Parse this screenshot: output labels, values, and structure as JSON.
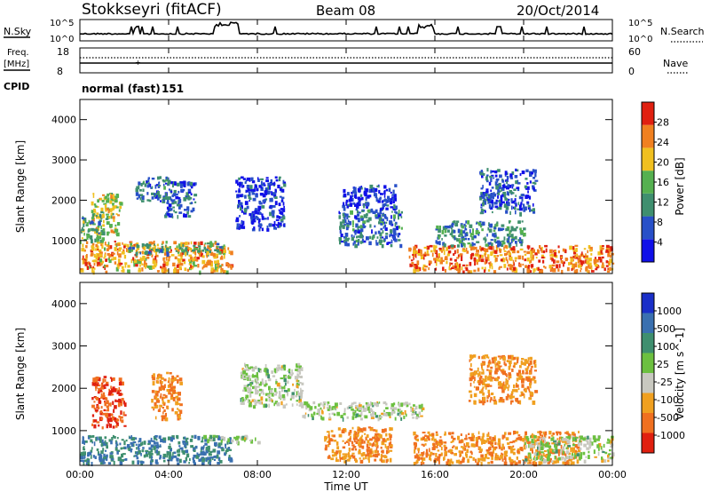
{
  "header": {
    "station": "Stokkseyri (fitACF)",
    "beam": "Beam 08",
    "date": "20/Oct/2014"
  },
  "noise_panel": {
    "left_label": "N.Sky",
    "right_label": "N.Search",
    "y_ticks_left": [
      "10^5",
      "10^0"
    ],
    "y_ticks_right": [
      "10^5",
      "10^0"
    ]
  },
  "freq_panel": {
    "left_label_line1": "Freq.",
    "left_label_line2": "[MHz]",
    "right_label": "Nave",
    "y_ticks_left": [
      "18",
      "8"
    ],
    "y_ticks_right": [
      "60",
      "0"
    ]
  },
  "cpid": {
    "label": "CPID",
    "text": "normal (fast)",
    "number": "151"
  },
  "x_axis": {
    "title": "Time UT",
    "ticks": [
      "00:00",
      "04:00",
      "08:00",
      "12:00",
      "16:00",
      "20:00",
      "00:00"
    ]
  },
  "range_axis": {
    "title": "Slant Range [km]",
    "ticks": [
      "1000",
      "2000",
      "3000",
      "4000"
    ]
  },
  "power_colorbar": {
    "title": "Power [dB]",
    "ticks": [
      "4",
      "8",
      "12",
      "16",
      "20",
      "24",
      "28"
    ],
    "colors": [
      "#1010e8",
      "#2850c8",
      "#3f8f6f",
      "#55b050",
      "#f0c020",
      "#f08020",
      "#e02010"
    ]
  },
  "velocity_colorbar": {
    "title": "Velocity [m s^-1]",
    "ticks": [
      "1000",
      "500",
      "100",
      "25",
      "-25",
      "-100",
      "-500",
      "-1000"
    ],
    "colors": [
      "#1a2fc8",
      "#3a70b0",
      "#3f8f6f",
      "#6cc040",
      "#c8c8c0",
      "#f0a020",
      "#f07020",
      "#e02010"
    ]
  },
  "chart_data": {
    "type": "heatmap",
    "x_range_hours": [
      0,
      24
    ],
    "y_range_km": [
      180,
      4500
    ],
    "power_regions": [
      {
        "t0": 0.0,
        "t1": 6.8,
        "r0": 250,
        "r1": 1000,
        "db": 22
      },
      {
        "t0": 0.5,
        "t1": 1.8,
        "r0": 1200,
        "r1": 2200,
        "db": 18
      },
      {
        "t0": 0.0,
        "t1": 1.0,
        "r0": 1000,
        "r1": 1700,
        "db": 14
      },
      {
        "t0": 2.0,
        "t1": 6.5,
        "r0": 700,
        "r1": 950,
        "db": 14
      },
      {
        "t0": 2.5,
        "t1": 4.0,
        "r0": 2000,
        "r1": 2600,
        "db": 10
      },
      {
        "t0": 3.8,
        "t1": 5.2,
        "r0": 1600,
        "r1": 2500,
        "db": 8
      },
      {
        "t0": 7.0,
        "t1": 9.2,
        "r0": 1300,
        "r1": 2600,
        "db": 6
      },
      {
        "t0": 11.6,
        "t1": 14.5,
        "r0": 900,
        "r1": 1800,
        "db": 10
      },
      {
        "t0": 11.8,
        "t1": 14.2,
        "r0": 1800,
        "r1": 2400,
        "db": 6
      },
      {
        "t0": 14.8,
        "t1": 24.0,
        "r0": 250,
        "r1": 900,
        "db": 24
      },
      {
        "t0": 16.0,
        "t1": 20.0,
        "r0": 900,
        "r1": 1500,
        "db": 12
      },
      {
        "t0": 18.0,
        "t1": 20.5,
        "r0": 1700,
        "r1": 2800,
        "db": 8
      }
    ],
    "velocity_regions": [
      {
        "t0": 0.0,
        "t1": 6.8,
        "r0": 250,
        "r1": 900,
        "v": 100
      },
      {
        "t0": 0.5,
        "t1": 2.0,
        "r0": 1100,
        "r1": 2300,
        "v": -500
      },
      {
        "t0": 3.2,
        "t1": 4.5,
        "r0": 1300,
        "r1": 2400,
        "v": -100
      },
      {
        "t0": 5.5,
        "t1": 8.0,
        "r0": 750,
        "r1": 900,
        "v": 0
      },
      {
        "t0": 7.2,
        "t1": 10.0,
        "r0": 1600,
        "r1": 2600,
        "v": 0
      },
      {
        "t0": 10.0,
        "t1": 15.5,
        "r0": 1300,
        "r1": 1700,
        "v": 0
      },
      {
        "t0": 11.0,
        "t1": 14.0,
        "r0": 300,
        "r1": 1100,
        "v": -100
      },
      {
        "t0": 15.0,
        "t1": 22.5,
        "r0": 250,
        "r1": 1000,
        "v": -100
      },
      {
        "t0": 20.0,
        "t1": 24.0,
        "r0": 300,
        "r1": 900,
        "v": 0
      },
      {
        "t0": 17.5,
        "t1": 20.5,
        "r0": 1700,
        "r1": 2800,
        "v": -100
      }
    ]
  }
}
